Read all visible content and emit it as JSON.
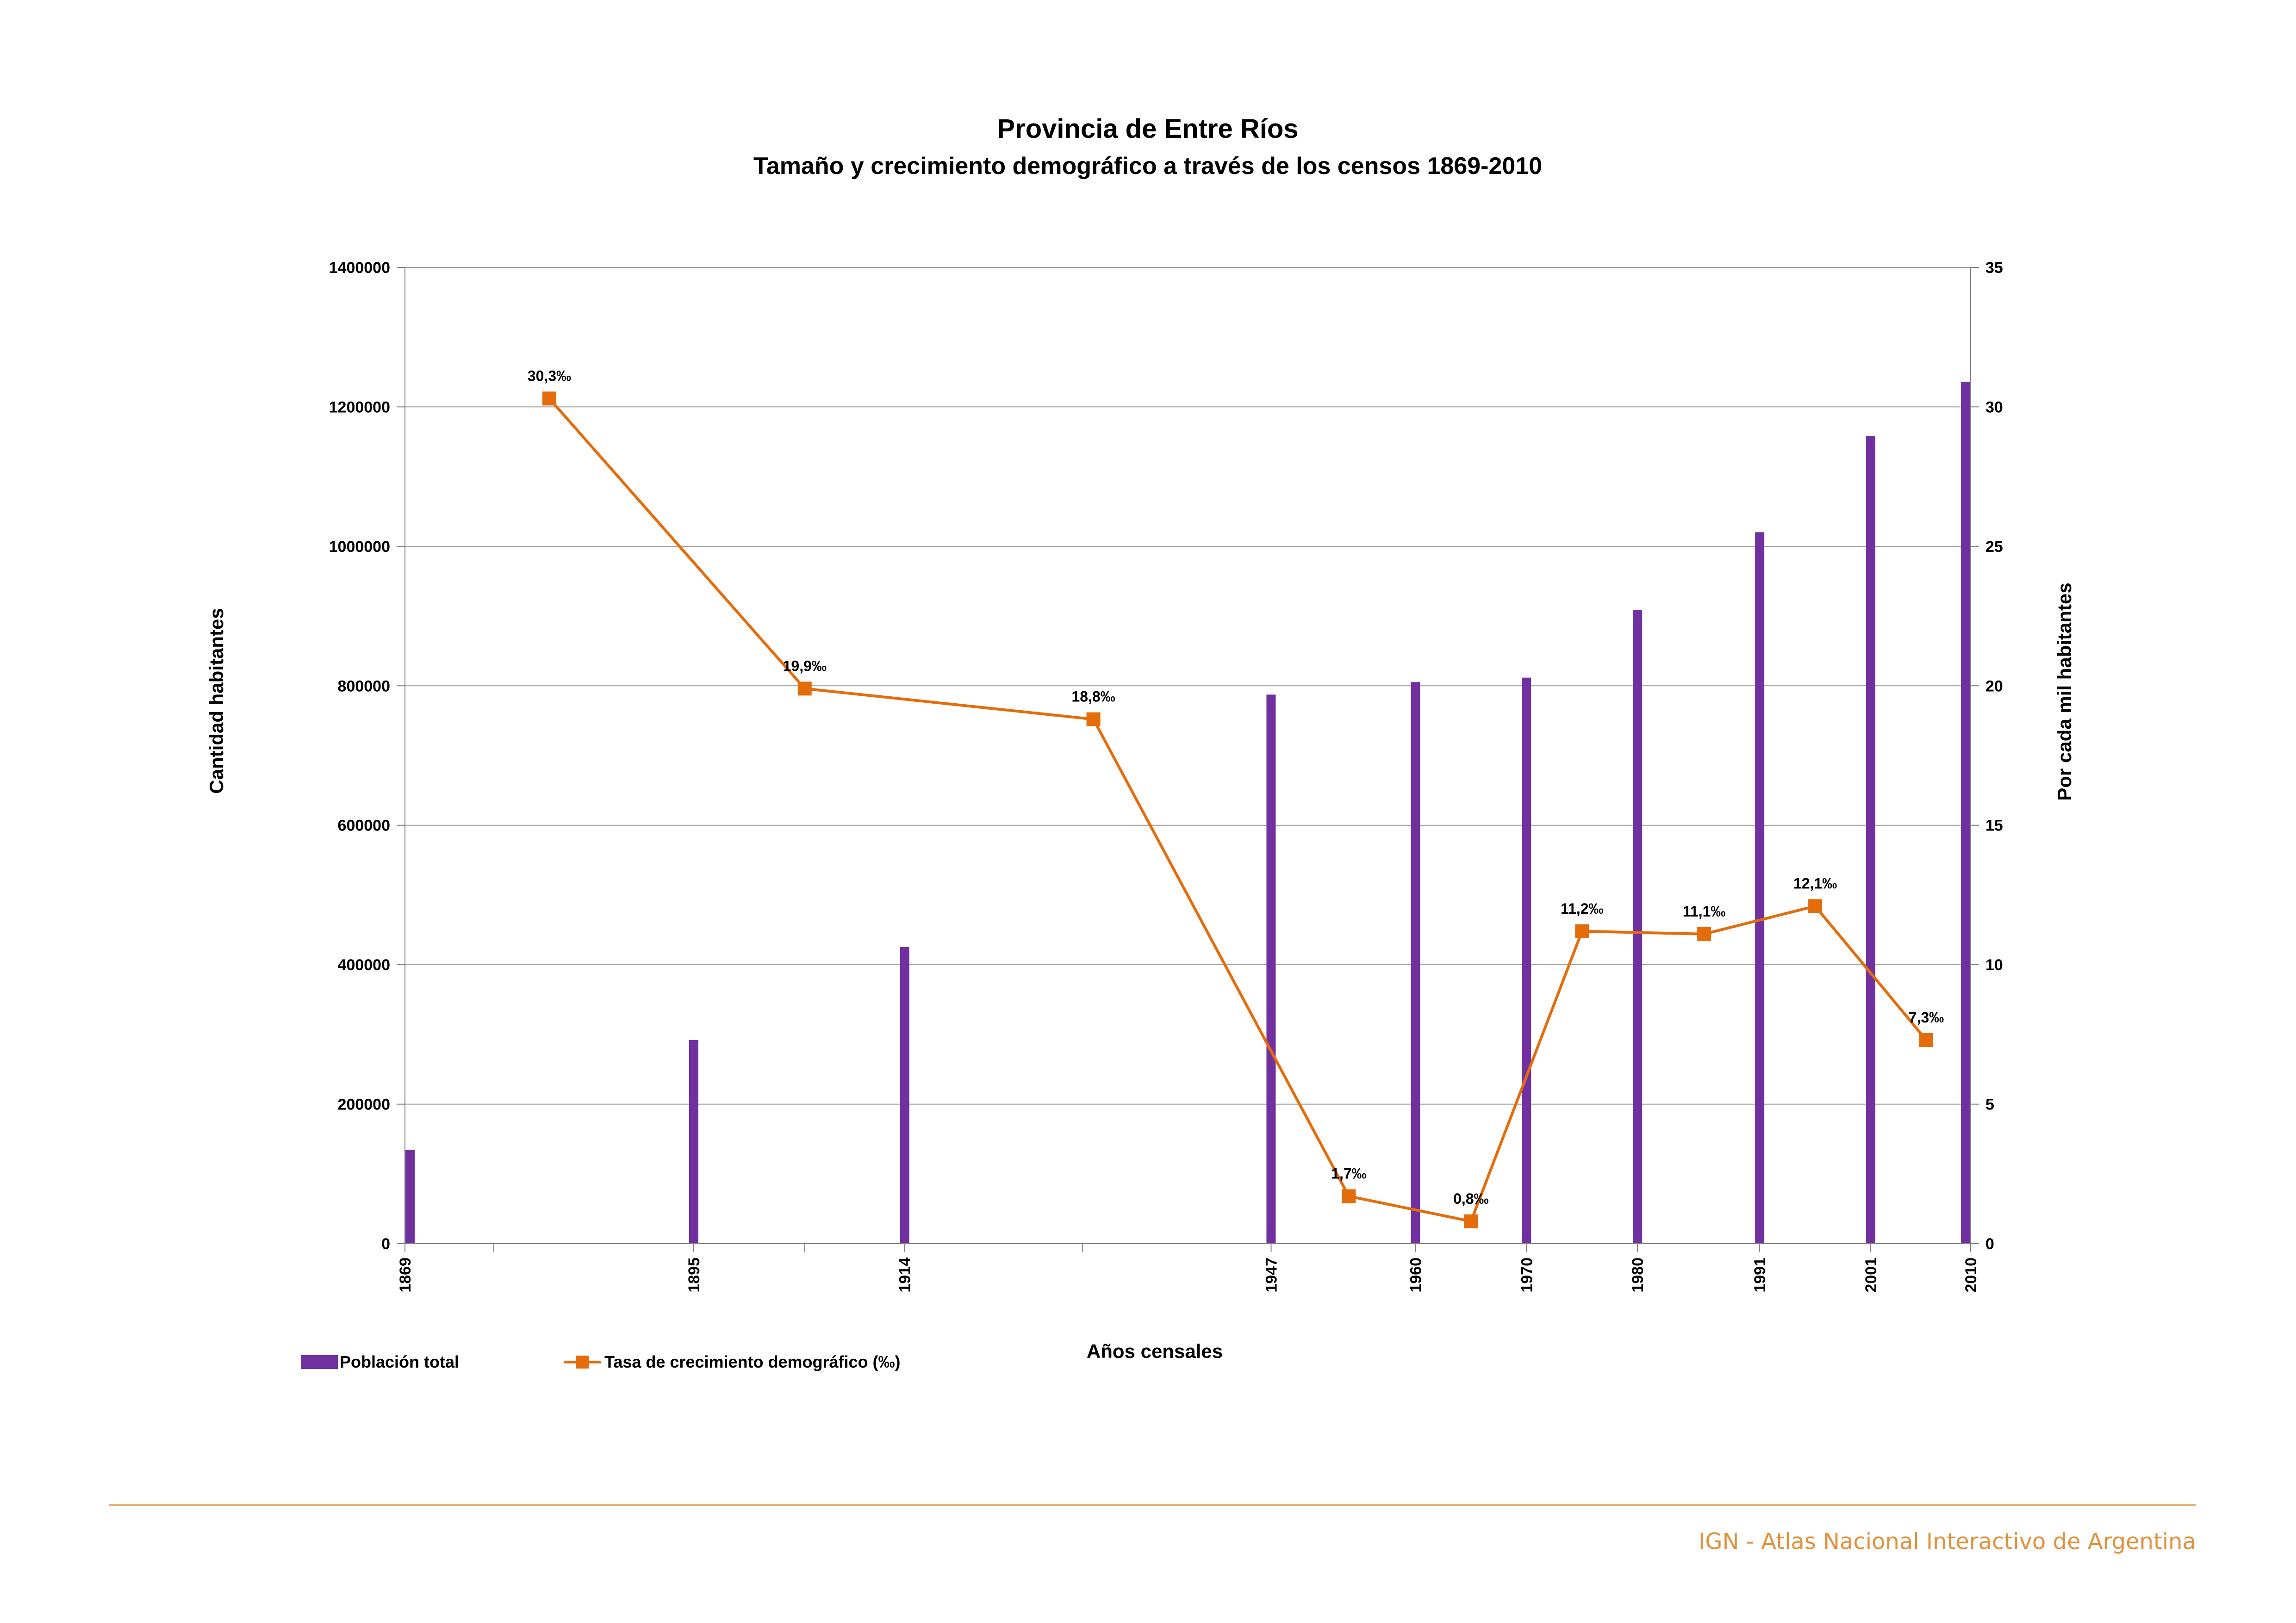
{
  "footer": {
    "text": "IGN - Atlas Nacional Interactivo de Argentina"
  },
  "colors": {
    "bar": "#7030A0",
    "line": "#E46C0A",
    "grid": "#9C9C9C",
    "footer": "#E0913A"
  },
  "chart_data": {
    "type": "bar+line",
    "title": "Provincia de Entre Ríos",
    "subtitle": "Tamaño y crecimiento demográfico a través de los censos 1869-2010",
    "xlabel": "Años censales",
    "ylabel_left": "Cantidad habitantes",
    "ylabel_right": "Por cada mil habitantes",
    "ylim_left": [
      0,
      1400000
    ],
    "ylim_right": [
      0,
      35
    ],
    "yticks_left": [
      "0",
      "200000",
      "400000",
      "600000",
      "800000",
      "1000000",
      "1200000",
      "1400000"
    ],
    "yticks_right": [
      "0",
      "5",
      "10",
      "15",
      "20",
      "25",
      "30",
      "35"
    ],
    "xlim": [
      1869,
      2010
    ],
    "grid": true,
    "legend_position": "bottom-left",
    "categories": [
      "1869",
      "1895",
      "1914",
      "1947",
      "1960",
      "1970",
      "1980",
      "1991",
      "2001",
      "2010"
    ],
    "series": [
      {
        "name": "Población total",
        "type": "bar",
        "axis": "left",
        "x": [
          1869,
          1895,
          1914,
          1947,
          1960,
          1970,
          1980,
          1991,
          2001,
          2010
        ],
        "values": [
          134271,
          292019,
          425373,
          787362,
          805357,
          811691,
          908313,
          1020257,
          1158147,
          1235994
        ]
      },
      {
        "name": "Tasa de crecimiento demográfico (‰)",
        "type": "line",
        "axis": "right",
        "x": [
          1882,
          1905,
          1931,
          1954,
          1965,
          1975,
          1986,
          1996,
          2006
        ],
        "values": [
          30.3,
          19.9,
          18.8,
          1.7,
          0.8,
          11.2,
          11.1,
          12.1,
          7.3
        ],
        "labels": [
          "30,3‰",
          "19,9‰",
          "18,8‰",
          "1,7‰",
          "0,8‰",
          "11,2‰",
          "11,1‰",
          "12,1‰",
          "7,3‰"
        ]
      }
    ]
  }
}
